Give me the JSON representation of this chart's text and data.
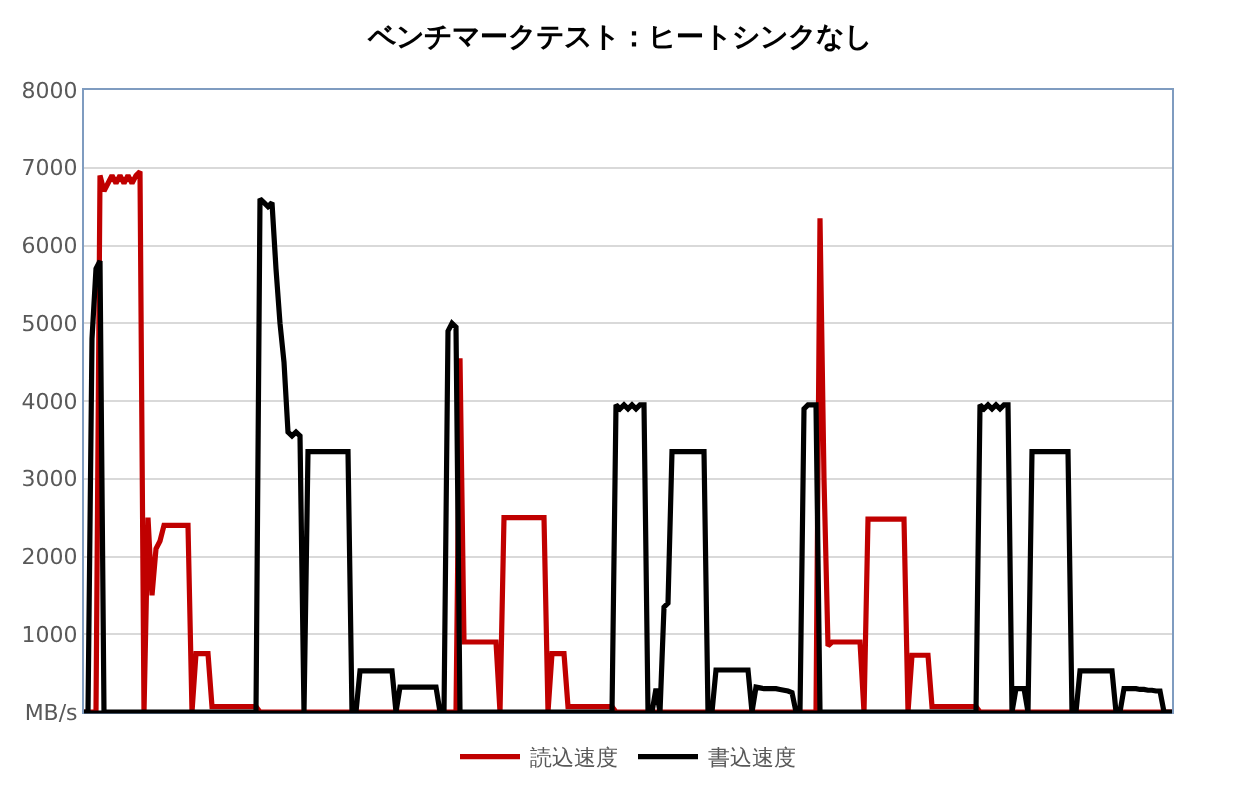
{
  "chart_data": {
    "type": "line",
    "title": "ベンチマークテスト：ヒートシンクなし",
    "categories": [
      null,
      null,
      null,
      null,
      null,
      null,
      null,
      null,
      null,
      null,
      null,
      null,
      null,
      null,
      null,
      null,
      null,
      null,
      null,
      null,
      null,
      null,
      null,
      null,
      null,
      null,
      null,
      null,
      null,
      null,
      null,
      null,
      null,
      null,
      null,
      null,
      null,
      null,
      null,
      null,
      null,
      null,
      null,
      null,
      null,
      null,
      null,
      null,
      null,
      null,
      null,
      null,
      null,
      null,
      null,
      null,
      null,
      null,
      null,
      null,
      null,
      null,
      null,
      null,
      null,
      null,
      null,
      null,
      null,
      null,
      null,
      null,
      null,
      null,
      null,
      null,
      null,
      null,
      null,
      null,
      null,
      null,
      null,
      null,
      null,
      null,
      null,
      null,
      null,
      null,
      null,
      null,
      null,
      null,
      null,
      null,
      null,
      null,
      null,
      null,
      null,
      null,
      null,
      null,
      null,
      null,
      null,
      null,
      null,
      null,
      null,
      null,
      null,
      null,
      null,
      null,
      null,
      null,
      null,
      null,
      null,
      null,
      null,
      null,
      null,
      null,
      null,
      null,
      null,
      null,
      null,
      null,
      null,
      null,
      null,
      null,
      null,
      null,
      null,
      null,
      null,
      null,
      null,
      null,
      null,
      null,
      null,
      null,
      null,
      null,
      null,
      null,
      null,
      null,
      null,
      null,
      null,
      null,
      null,
      null,
      null,
      null,
      null,
      null,
      null,
      null,
      null,
      null,
      null,
      null,
      null,
      null,
      null,
      null,
      null,
      null,
      null,
      null,
      null,
      null,
      null,
      null,
      null,
      null,
      null,
      null,
      null,
      null,
      null,
      null,
      null,
      null,
      null,
      null,
      null,
      null,
      null,
      null,
      null,
      null,
      null,
      null,
      null,
      null,
      null,
      null,
      null,
      null,
      null,
      null,
      null,
      null,
      null,
      null,
      null,
      null,
      null,
      null,
      null,
      null,
      null,
      null,
      null,
      null,
      null,
      null,
      null,
      null,
      null,
      null,
      null,
      null,
      null,
      null,
      null,
      null,
      null,
      null,
      null,
      null,
      null,
      null,
      null,
      null,
      null,
      null,
      null,
      null,
      null,
      null,
      null,
      null,
      null,
      null,
      null,
      null,
      null,
      null,
      null,
      null,
      null,
      null,
      null,
      null,
      null,
      null,
      null,
      null,
      null,
      null,
      null,
      null,
      null
    ],
    "series": [
      {
        "name": "読込速度",
        "color": "#c00000",
        "values": [
          0,
          0,
          0,
          0,
          6900,
          6700,
          6800,
          6900,
          6800,
          6900,
          6800,
          6900,
          6800,
          6900,
          6950,
          0,
          2500,
          1500,
          2100,
          2200,
          2400,
          2400,
          2400,
          2400,
          2400,
          2400,
          2400,
          0,
          750,
          750,
          750,
          750,
          70,
          70,
          70,
          70,
          70,
          70,
          70,
          70,
          70,
          70,
          70,
          70,
          0,
          0,
          0,
          0,
          0,
          0,
          0,
          0,
          0,
          0,
          0,
          0,
          0,
          0,
          0,
          0,
          0,
          0,
          0,
          0,
          0,
          0,
          0,
          0,
          0,
          0,
          0,
          0,
          0,
          0,
          0,
          0,
          0,
          0,
          0,
          0,
          0,
          0,
          0,
          0,
          0,
          0,
          0,
          0,
          0,
          0,
          0,
          0,
          0,
          0,
          4550,
          900,
          900,
          900,
          900,
          900,
          900,
          900,
          900,
          900,
          0,
          2500,
          2500,
          2500,
          2500,
          2500,
          2500,
          2500,
          2500,
          2500,
          2500,
          2500,
          0,
          750,
          750,
          750,
          750,
          70,
          70,
          70,
          70,
          70,
          70,
          70,
          70,
          70,
          70,
          70,
          70,
          0,
          0,
          0,
          0,
          0,
          0,
          0,
          0,
          0,
          0,
          0,
          0,
          0,
          0,
          0,
          0,
          0,
          0,
          0,
          0,
          0,
          0,
          0,
          0,
          0,
          0,
          0,
          0,
          0,
          0,
          0,
          0,
          0,
          0,
          0,
          0,
          0,
          0,
          0,
          0,
          0,
          0,
          0,
          0,
          0,
          0,
          0,
          0,
          0,
          0,
          0,
          6350,
          3000,
          850,
          900,
          900,
          900,
          900,
          900,
          900,
          900,
          900,
          0,
          2480,
          2480,
          2480,
          2480,
          2480,
          2480,
          2480,
          2480,
          2480,
          2480,
          0,
          730,
          730,
          730,
          730,
          730,
          70,
          70,
          70,
          70,
          70,
          70,
          70,
          70,
          70,
          70,
          70,
          70,
          0,
          0,
          0,
          0,
          0,
          0,
          0,
          0,
          0,
          0,
          0,
          0,
          0,
          0,
          0,
          0,
          0,
          0,
          0,
          0,
          0,
          0,
          0,
          0,
          0,
          0,
          0,
          0,
          0,
          0,
          0,
          0,
          0,
          0,
          0,
          0,
          0,
          0,
          0,
          0,
          0,
          0,
          0,
          0,
          0,
          0,
          0,
          0,
          0
        ]
      },
      {
        "name": "書込速度",
        "color": "#000000",
        "values": [
          0,
          0,
          4800,
          5700,
          5800,
          0,
          0,
          0,
          0,
          0,
          0,
          0,
          0,
          0,
          0,
          0,
          0,
          0,
          0,
          0,
          0,
          0,
          0,
          0,
          0,
          0,
          0,
          0,
          0,
          0,
          0,
          0,
          0,
          0,
          0,
          0,
          0,
          0,
          0,
          0,
          0,
          0,
          0,
          0,
          6600,
          6550,
          6500,
          6550,
          5700,
          5000,
          4500,
          3600,
          3550,
          3600,
          3550,
          0,
          3350,
          3350,
          3350,
          3350,
          3350,
          3350,
          3350,
          3350,
          3350,
          3350,
          3350,
          0,
          0,
          530,
          530,
          530,
          530,
          530,
          530,
          530,
          530,
          530,
          0,
          320,
          320,
          320,
          320,
          320,
          320,
          320,
          320,
          320,
          320,
          0,
          0,
          4900,
          5000,
          4950,
          0,
          0,
          0,
          0,
          0,
          0,
          0,
          0,
          0,
          0,
          0,
          0,
          0,
          0,
          0,
          0,
          0,
          0,
          0,
          0,
          0,
          0,
          0,
          0,
          0,
          0,
          0,
          0,
          0,
          0,
          0,
          0,
          0,
          0,
          0,
          0,
          0,
          0,
          0,
          3950,
          3900,
          3950,
          3900,
          3950,
          3900,
          3950,
          3950,
          0,
          0,
          300,
          0,
          1350,
          1400,
          3350,
          3350,
          3350,
          3350,
          3350,
          3350,
          3350,
          3350,
          3350,
          0,
          0,
          540,
          540,
          540,
          540,
          540,
          540,
          540,
          540,
          540,
          0,
          320,
          310,
          300,
          300,
          300,
          300,
          290,
          280,
          270,
          250,
          0,
          0,
          3900,
          3950,
          3950,
          3950,
          0,
          0,
          0,
          0,
          0,
          0,
          0,
          0,
          0,
          0,
          0,
          0,
          0,
          0,
          0,
          0,
          0,
          0,
          0,
          0,
          0,
          0,
          0,
          0,
          0,
          0,
          0,
          0,
          0,
          0,
          0,
          0,
          0,
          0,
          0,
          0,
          0,
          0,
          0,
          0,
          3950,
          3900,
          3950,
          3900,
          3950,
          3900,
          3950,
          3950,
          0,
          300,
          300,
          300,
          0,
          3350,
          3350,
          3350,
          3350,
          3350,
          3350,
          3350,
          3350,
          3350,
          3350,
          0,
          0,
          530,
          530,
          530,
          530,
          530,
          530,
          530,
          530,
          530,
          0,
          0,
          300,
          300,
          300,
          300,
          290,
          290,
          280,
          280,
          270,
          270,
          0,
          0,
          0
        ]
      }
    ],
    "ylim": [
      0,
      8000
    ],
    "yticks": [
      {
        "value": 0,
        "label": "MB/s"
      },
      1000,
      2000,
      3000,
      4000,
      5000,
      6000,
      7000,
      8000
    ],
    "grid": "y",
    "legend": "bottom",
    "marker": "none",
    "line_style": "solid"
  }
}
